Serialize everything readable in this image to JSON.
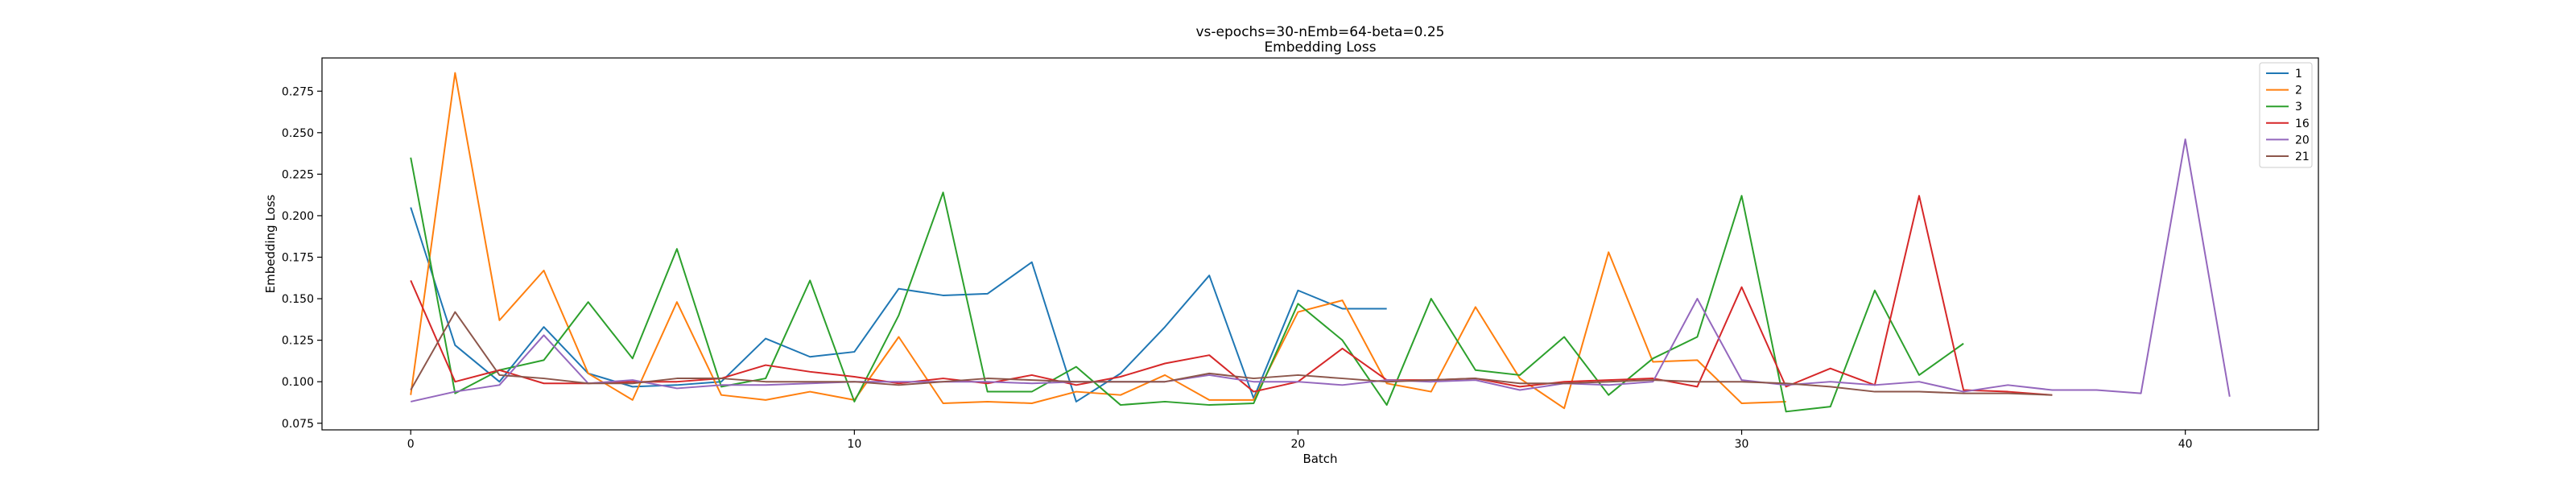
{
  "chart_data": {
    "type": "line",
    "title": "vs-epochs=30-nEmb=64-beta=0.25",
    "subtitle": "Embedding Loss",
    "xlabel": "Batch",
    "ylabel": "Embedding Loss",
    "xlim": [
      -2,
      43
    ],
    "ylim": [
      0.071,
      0.295
    ],
    "xticks": [
      0,
      10,
      20,
      30,
      40
    ],
    "yticks": [
      0.075,
      0.1,
      0.125,
      0.15,
      0.175,
      0.2,
      0.225,
      0.25,
      0.275
    ],
    "ytick_labels": [
      "0.075",
      "0.100",
      "0.125",
      "0.150",
      "0.175",
      "0.200",
      "0.225",
      "0.250",
      "0.275"
    ],
    "grid": false,
    "legend_position": "top-right",
    "series": [
      {
        "name": "1",
        "color": "#1f77b4",
        "values": [
          0.205,
          0.122,
          0.1,
          0.133,
          0.105,
          0.097,
          0.098,
          0.1,
          0.126,
          0.115,
          0.118,
          0.156,
          0.152,
          0.153,
          0.172,
          0.088,
          0.105,
          0.133,
          0.164,
          0.09,
          0.155,
          0.144,
          0.144
        ]
      },
      {
        "name": "2",
        "color": "#ff7f0e",
        "values": [
          0.092,
          0.286,
          0.137,
          0.167,
          0.105,
          0.089,
          0.148,
          0.092,
          0.089,
          0.094,
          0.089,
          0.127,
          0.087,
          0.088,
          0.087,
          0.094,
          0.092,
          0.104,
          0.089,
          0.089,
          0.142,
          0.149,
          0.099,
          0.094,
          0.145,
          0.102,
          0.084,
          0.178,
          0.112,
          0.113,
          0.087,
          0.088
        ]
      },
      {
        "name": "3",
        "color": "#2ca02c",
        "values": [
          0.235,
          0.093,
          0.107,
          0.113,
          0.148,
          0.114,
          0.18,
          0.097,
          0.102,
          0.161,
          0.088,
          0.14,
          0.214,
          0.094,
          0.094,
          0.109,
          0.086,
          0.088,
          0.086,
          0.087,
          0.147,
          0.125,
          0.086,
          0.15,
          0.107,
          0.104,
          0.127,
          0.092,
          0.114,
          0.127,
          0.212,
          0.082,
          0.085,
          0.155,
          0.104,
          0.123
        ]
      },
      {
        "name": "16",
        "color": "#d62728",
        "values": [
          0.161,
          0.1,
          0.107,
          0.099,
          0.099,
          0.1,
          0.1,
          0.102,
          0.11,
          0.106,
          0.103,
          0.099,
          0.102,
          0.099,
          0.104,
          0.098,
          0.103,
          0.111,
          0.116,
          0.094,
          0.1,
          0.12,
          0.101,
          0.101,
          0.102,
          0.097,
          0.1,
          0.101,
          0.102,
          0.097,
          0.157,
          0.097,
          0.108,
          0.098,
          0.212,
          0.095,
          0.094,
          0.092
        ]
      },
      {
        "name": "20",
        "color": "#9467bd",
        "values": [
          0.088,
          0.094,
          0.098,
          0.128,
          0.099,
          0.101,
          0.096,
          0.098,
          0.098,
          0.099,
          0.1,
          0.1,
          0.1,
          0.1,
          0.099,
          0.1,
          0.1,
          0.1,
          0.104,
          0.1,
          0.1,
          0.098,
          0.101,
          0.1,
          0.101,
          0.095,
          0.099,
          0.098,
          0.1,
          0.15,
          0.101,
          0.098,
          0.1,
          0.098,
          0.1,
          0.094,
          0.098,
          0.095,
          0.095,
          0.093,
          0.246,
          0.091
        ]
      },
      {
        "name": "21",
        "color": "#8c564b",
        "values": [
          0.095,
          0.142,
          0.104,
          0.102,
          0.099,
          0.099,
          0.102,
          0.102,
          0.1,
          0.1,
          0.1,
          0.098,
          0.1,
          0.102,
          0.101,
          0.1,
          0.1,
          0.1,
          0.105,
          0.102,
          0.104,
          0.102,
          0.1,
          0.101,
          0.102,
          0.099,
          0.099,
          0.1,
          0.101,
          0.1,
          0.1,
          0.099,
          0.097,
          0.094,
          0.094,
          0.093,
          0.093,
          0.092
        ]
      }
    ]
  }
}
